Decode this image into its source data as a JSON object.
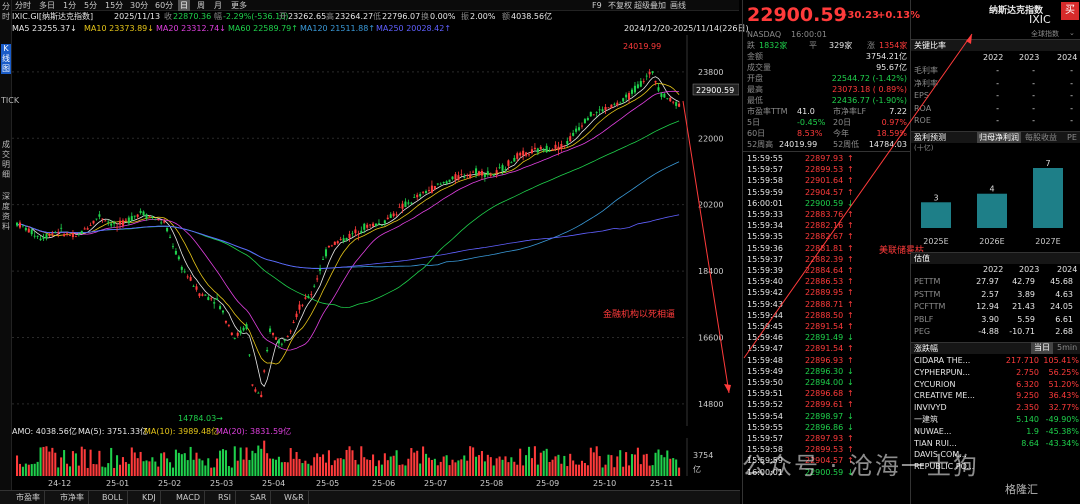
{
  "left_strip": [
    "分时",
    "K线图",
    "TICK",
    "成交明细",
    "深度资料"
  ],
  "toolbar": {
    "items": [
      "分时",
      "多日",
      "1分",
      "5分",
      "15分",
      "30分",
      "60分",
      "日",
      "周",
      "月",
      "更多"
    ],
    "active": "日",
    "right_items": [
      "F9",
      "不复权",
      "超级叠加",
      "画线"
    ]
  },
  "infobar": {
    "symbol": "IXIC.GI[纳斯达克指数]",
    "date": "2025/11/13",
    "close_label": "收",
    "close": "22870.36",
    "change_label": "幅",
    "change": "-2.29%(-536.10)",
    "open_label": "开",
    "open": "23262.65",
    "high_label": "高",
    "high": "23264.27",
    "low_label": "低",
    "low": "22796.07",
    "turnover_label": "换",
    "turnover": "0.00%",
    "amp_label": "振",
    "amp": "2.00%",
    "amount_label": "额",
    "amount": "4038.56亿"
  },
  "ma_bar": {
    "ma5": "MA5 23255.37↓",
    "ma10": "MA10 23373.89↓",
    "ma20": "MA20 23312.74↓",
    "ma60": "MA60 22589.79↑",
    "ma120": "MA120 21511.88↑",
    "ma250": "MA250 20028.42↑",
    "range": "2024/12/20-2025/11/14(226日)"
  },
  "colors": {
    "up": "#ff3b3b",
    "down": "#1fd14c",
    "ma5": "#e8e8e8",
    "ma10": "#e6c619",
    "ma20": "#e040e0",
    "ma60": "#1fd14c",
    "ma120": "#3a9ad9",
    "ma250": "#6060ff",
    "accent": "#1a5cc8"
  },
  "chart": {
    "y_ticks": [
      "23800",
      "22000",
      "20200",
      "18400",
      "16600",
      "14800"
    ],
    "price_tag": "22900.59",
    "high_mark": "24019.99",
    "low_mark": "14784.03→",
    "annotation_text": "金融机构以死相逼",
    "annotation2_text": "美联储晷枯",
    "x_ticks": [
      "24-12",
      "25-01",
      "25-02",
      "25-03",
      "25-04",
      "25-05",
      "25-06",
      "25-07",
      "25-08",
      "25-09",
      "25-10",
      "25-11"
    ]
  },
  "volume": {
    "label": "AMO: 4038.56亿",
    "ma5": "MA(5): 3751.33亿",
    "ma10": "MA(10): 3989.48亿",
    "ma20": "MA(20): 3831.59亿",
    "y_tick": "3754",
    "unit": "亿"
  },
  "bottom_tabs": [
    "市盈率",
    "市净率",
    "BOLL",
    "KDJ",
    "MACD",
    "RSI",
    "SAR",
    "W&R"
  ],
  "quote": {
    "price": "22900.59",
    "change": "+30.23",
    "pct": "+0.13%",
    "exchange": "NASDAQ",
    "time": "16:00:01",
    "rise_label": "跌",
    "rise": "1832家",
    "flat_label": "平",
    "flat": "329家",
    "fall_label": "涨",
    "fall": "1354家",
    "rows": [
      {
        "l": "金额",
        "v": "3754.21亿",
        "c": "white"
      },
      {
        "l": "成交量",
        "v": "95.67亿",
        "c": "white"
      },
      {
        "l": "开盘",
        "v": "22544.72 (-1.42%)",
        "c": "green"
      },
      {
        "l": "最高",
        "v": "23073.18 ( 0.89%)",
        "c": "red"
      },
      {
        "l": "最低",
        "v": "22436.77 (-1.90%)",
        "c": "green"
      }
    ],
    "pe_label": "市盈率TTM",
    "pe": "41.0",
    "pb_label": "市净率LF",
    "pb": "7.22",
    "d5_label": "5日",
    "d5": "-0.45%",
    "d20_label": "20日",
    "d20": "0.97%",
    "d60_label": "60日",
    "d60": "8.53%",
    "ytd_label": "今年",
    "ytd": "18.59%",
    "w52h_label": "52周高",
    "w52h": "24019.99",
    "w52l_label": "52周低",
    "w52l": "14784.03"
  },
  "ticks": [
    {
      "t": "15:59:55",
      "p": "22897.93",
      "d": "up"
    },
    {
      "t": "15:59:57",
      "p": "22899.53",
      "d": "up"
    },
    {
      "t": "15:59:58",
      "p": "22901.64",
      "d": "up"
    },
    {
      "t": "15:59:59",
      "p": "22904.57",
      "d": "up"
    },
    {
      "t": "16:00:01",
      "p": "22900.59",
      "d": "down"
    },
    {
      "t": "15:59:33",
      "p": "22883.76",
      "d": "up"
    },
    {
      "t": "15:59:34",
      "p": "22882.16",
      "d": "up"
    },
    {
      "t": "15:59:35",
      "p": "22882.67",
      "d": "up"
    },
    {
      "t": "15:59:36",
      "p": "22881.81",
      "d": "up"
    },
    {
      "t": "15:59:37",
      "p": "22882.39",
      "d": "up"
    },
    {
      "t": "15:59:39",
      "p": "22884.64",
      "d": "up"
    },
    {
      "t": "15:59:40",
      "p": "22886.53",
      "d": "up"
    },
    {
      "t": "15:59:42",
      "p": "22889.95",
      "d": "up"
    },
    {
      "t": "15:59:43",
      "p": "22888.71",
      "d": "up"
    },
    {
      "t": "15:59:44",
      "p": "22888.50",
      "d": "up"
    },
    {
      "t": "15:59:45",
      "p": "22891.54",
      "d": "up"
    },
    {
      "t": "15:59:46",
      "p": "22891.49",
      "d": "down"
    },
    {
      "t": "15:59:47",
      "p": "22891.54",
      "d": "up"
    },
    {
      "t": "15:59:48",
      "p": "22896.93",
      "d": "up"
    },
    {
      "t": "15:59:49",
      "p": "22896.30",
      "d": "down"
    },
    {
      "t": "15:59:50",
      "p": "22894.00",
      "d": "down"
    },
    {
      "t": "15:59:51",
      "p": "22896.68",
      "d": "up"
    },
    {
      "t": "15:59:52",
      "p": "22899.61",
      "d": "up"
    },
    {
      "t": "15:59:54",
      "p": "22898.97",
      "d": "down"
    },
    {
      "t": "15:59:55",
      "p": "22896.86",
      "d": "down"
    },
    {
      "t": "15:59:57",
      "p": "22897.93",
      "d": "up"
    },
    {
      "t": "15:59:58",
      "p": "22899.53",
      "d": "up"
    },
    {
      "t": "15:59:59",
      "p": "22904.57",
      "d": "up"
    },
    {
      "t": "16:00:01",
      "p": "22900.59",
      "d": "down"
    }
  ],
  "right": {
    "title": "纳斯达克指数",
    "code": "IXIC",
    "buy": "买",
    "sub": "全球指数",
    "key_ratio": "关键比率",
    "years": [
      "2022",
      "2023",
      "2024"
    ],
    "ratio_rows": [
      {
        "l": "毛利率",
        "v": [
          "-",
          "-",
          "-"
        ]
      },
      {
        "l": "净利率",
        "v": [
          "-",
          "-",
          "-"
        ]
      },
      {
        "l": "EPS",
        "v": [
          "-",
          "-",
          "-"
        ]
      },
      {
        "l": "ROA",
        "v": [
          "-",
          "-",
          "-"
        ]
      },
      {
        "l": "ROE",
        "v": [
          "-",
          "-",
          "-"
        ]
      }
    ],
    "forecast": "盈利预测",
    "forecast_sub": "(十亿)",
    "forecast_tabs": [
      "归母净利润",
      "每股收益",
      "PE"
    ],
    "forecast_bars": [
      {
        "label": "2025E",
        "value": 3
      },
      {
        "label": "2026E",
        "value": 4
      },
      {
        "label": "2027E",
        "value": 7
      }
    ],
    "valuation": "估值",
    "val_rows": [
      {
        "l": "PETTM",
        "v": [
          "27.97",
          "42.79",
          "45.68"
        ]
      },
      {
        "l": "PSTTM",
        "v": [
          "2.57",
          "3.89",
          "4.63"
        ]
      },
      {
        "l": "PCFTTM",
        "v": [
          "12.94",
          "21.43",
          "24.05"
        ]
      },
      {
        "l": "PBLF",
        "v": [
          "3.90",
          "5.59",
          "6.61"
        ]
      },
      {
        "l": "PEG",
        "v": [
          "-4.88",
          "-10.71",
          "2.68"
        ]
      }
    ],
    "movers": "涨跌幅",
    "movers_tabs": [
      "当日",
      "5min"
    ],
    "mover_rows": [
      {
        "n": "CIDARA THE...",
        "p": "217.710",
        "c": "105.41%",
        "dir": "up"
      },
      {
        "n": "CYPHERPUN...",
        "p": "2.750",
        "c": "56.25%",
        "dir": "up"
      },
      {
        "n": "CYCURION",
        "p": "6.320",
        "c": "51.20%",
        "dir": "up"
      },
      {
        "n": "CREATIVE ME...",
        "p": "9.250",
        "c": "36.43%",
        "dir": "up"
      },
      {
        "n": "INVIVYD",
        "p": "2.350",
        "c": "32.77%",
        "dir": "up"
      },
      {
        "n": "一建筑",
        "p": "5.140",
        "c": "-49.90%",
        "dir": "down"
      },
      {
        "n": "NUWAE...",
        "p": "1.9",
        "c": "-45.38%",
        "dir": "down"
      },
      {
        "n": "TIAN RUI...",
        "p": "8.64",
        "c": "-43.34%",
        "dir": "down"
      },
      {
        "n": "DAVIS COM...",
        "p": "",
        "c": "",
        "dir": "down"
      },
      {
        "n": "REPUBLIC PO...",
        "p": "",
        "c": "",
        "dir": "down"
      }
    ]
  },
  "watermark": "公众号 · 沧海一土狗",
  "logo": "格隆汇"
}
